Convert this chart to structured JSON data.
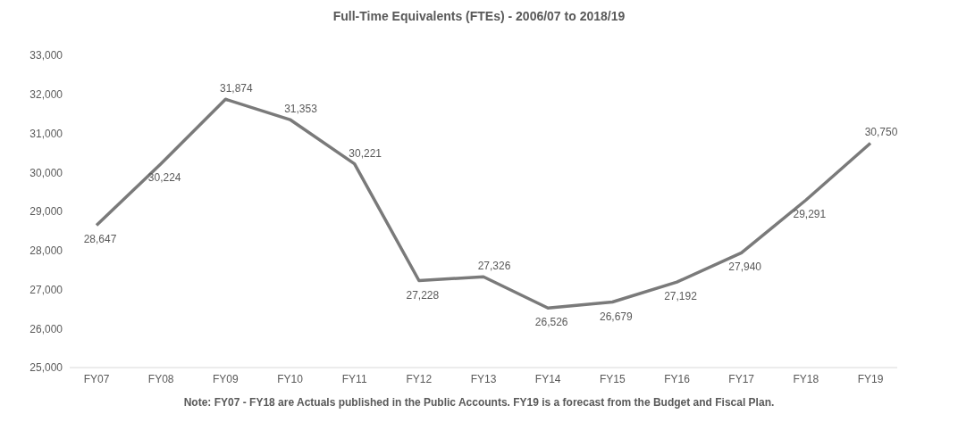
{
  "chart_data": {
    "type": "line",
    "title": "Full-Time Equivalents (FTEs) - 2006/07 to 2018/19",
    "annotations": [
      "Note: FY07 - FY18 are Actuals published in the Public Accounts. FY19 is a forecast from the Budget and Fiscal Plan."
    ],
    "categories": [
      "FY07",
      "FY08",
      "FY09",
      "FY10",
      "FY11",
      "FY12",
      "FY13",
      "FY14",
      "FY15",
      "FY16",
      "FY17",
      "FY18",
      "FY19"
    ],
    "series": [
      {
        "color": "#7a7a7a",
        "values": [
          28647,
          30224,
          31874,
          31353,
          30221,
          27228,
          27326,
          26526,
          26679,
          27192,
          27940,
          29291,
          30750
        ],
        "value_labels": [
          "28,647",
          "30,224",
          "31,874",
          "31,353",
          "30,221",
          "27,228",
          "27,326",
          "26,526",
          "26,679",
          "27,192",
          "27,940",
          "29,291",
          "30,750"
        ]
      }
    ],
    "ylim": [
      25000,
      33000
    ],
    "yticks": [
      {
        "value": 25000,
        "label": "25,000"
      },
      {
        "value": 26000,
        "label": "26,000"
      },
      {
        "value": 27000,
        "label": "27,000"
      },
      {
        "value": 28000,
        "label": "28,000"
      },
      {
        "value": 29000,
        "label": "29,000"
      },
      {
        "value": 30000,
        "label": "30,000"
      },
      {
        "value": 31000,
        "label": "31,000"
      },
      {
        "value": 32000,
        "label": "32,000"
      },
      {
        "value": 33000,
        "label": "33,000"
      }
    ],
    "legend": false,
    "marker": "none",
    "line_style": "solid"
  }
}
